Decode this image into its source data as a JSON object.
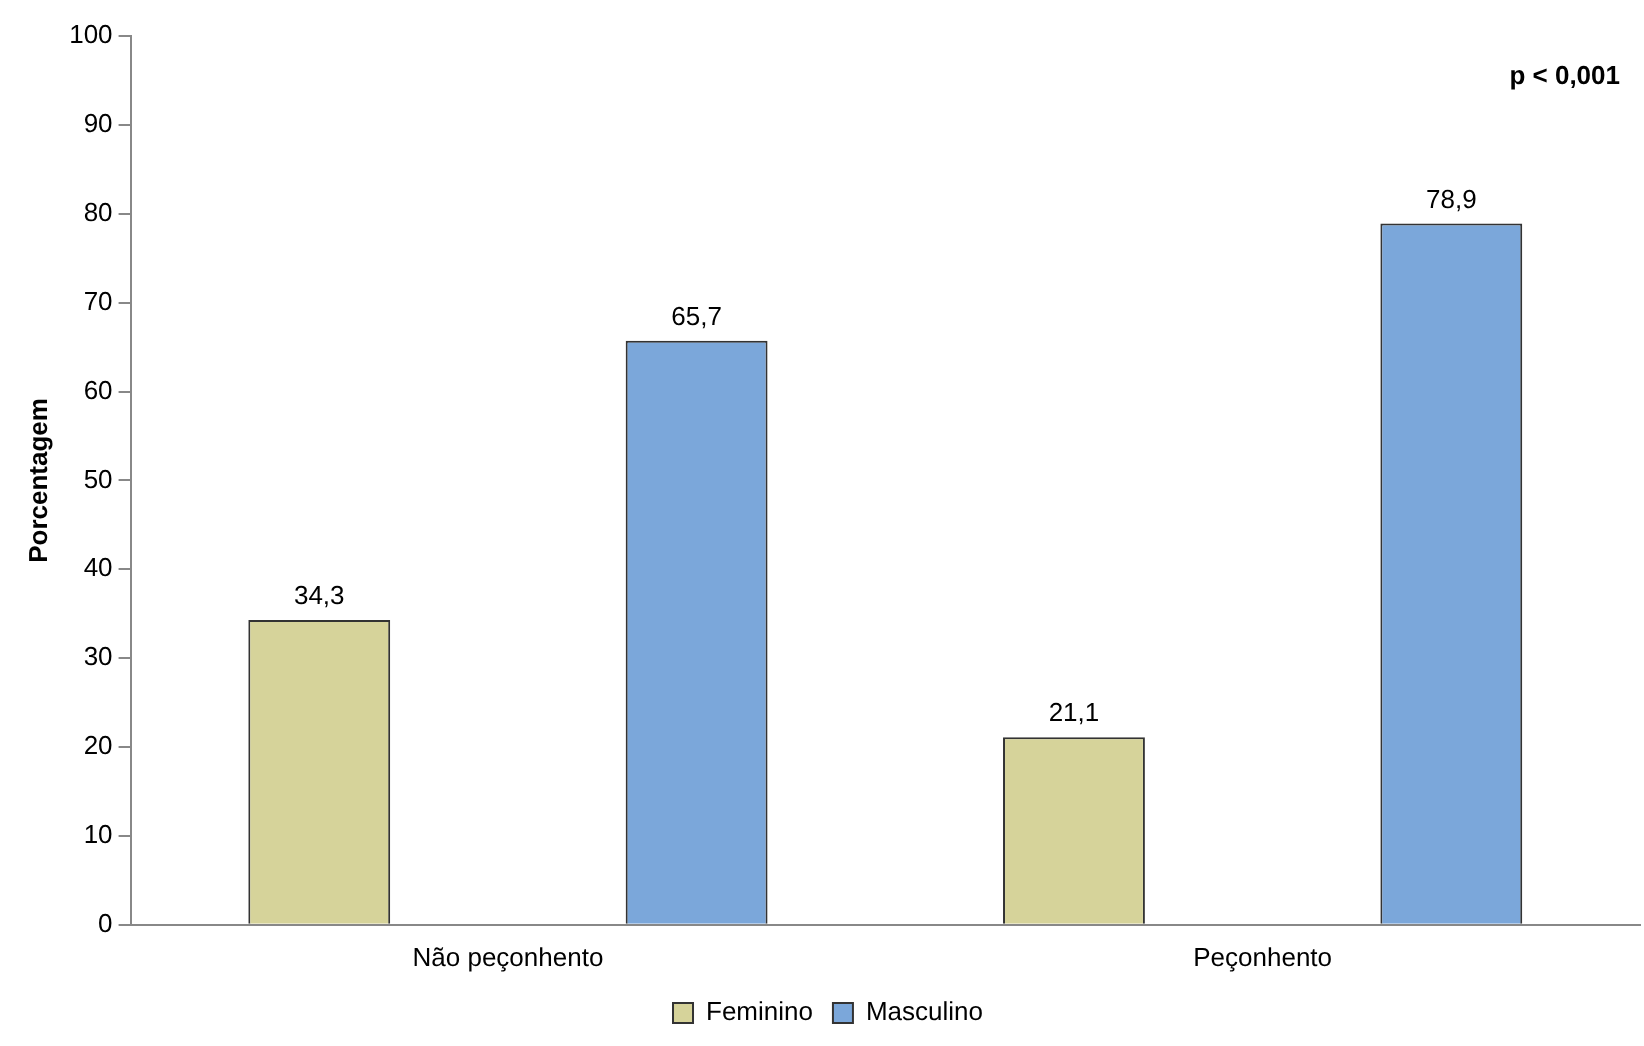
{
  "chart_data": {
    "type": "bar",
    "ylabel": "Porcentagem",
    "categories": [
      "Não peçonhento",
      "Peçonhento"
    ],
    "series": [
      {
        "name": "Feminino",
        "color": "#d6d39a",
        "values": [
          34.3,
          21.1
        ],
        "value_labels": [
          "34,3",
          "21,1"
        ]
      },
      {
        "name": "Masculino",
        "color": "#7ba7da",
        "values": [
          65.7,
          78.9
        ],
        "value_labels": [
          "65,7",
          "78,9"
        ]
      }
    ],
    "ylim": [
      0,
      100
    ],
    "yticks": [
      0,
      10,
      20,
      30,
      40,
      50,
      60,
      70,
      80,
      90,
      100
    ],
    "grid": false,
    "legend": "bottom",
    "annotations": [
      "p < 0,001"
    ]
  }
}
